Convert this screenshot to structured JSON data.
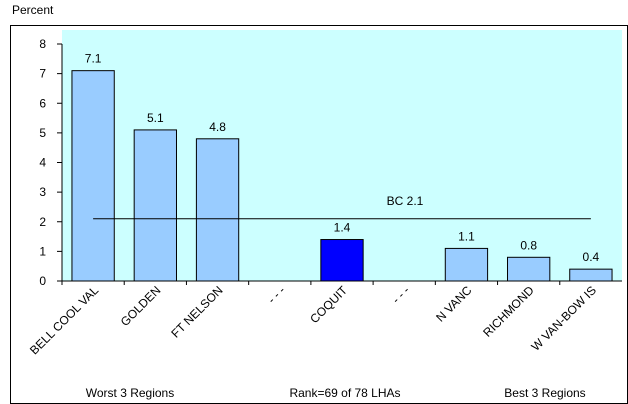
{
  "chart_data": {
    "type": "bar",
    "y_label": "Percent",
    "categories": [
      "BELL COOL VAL",
      "GOLDEN",
      "FT NELSON",
      "- - -",
      "COQUIT",
      "- - -",
      "N VANC",
      "RICHMOND",
      "W VAN-BOW IS"
    ],
    "values": [
      7.1,
      5.1,
      4.8,
      null,
      1.4,
      null,
      1.1,
      0.8,
      0.4
    ],
    "colors": [
      "#99ccff",
      "#99ccff",
      "#99ccff",
      null,
      "#0000ff",
      null,
      "#99ccff",
      "#99ccff",
      "#99ccff"
    ],
    "ylim": [
      0,
      8
    ],
    "yticks": [
      0,
      1,
      2,
      3,
      4,
      5,
      6,
      7,
      8
    ],
    "reference": {
      "value": 2.1,
      "label": "BC 2.1"
    },
    "footer": [
      "Worst 3 Regions",
      "Rank=69 of 78 LHAs",
      "Best 3 Regions"
    ],
    "plot_background": "#ccffff"
  }
}
